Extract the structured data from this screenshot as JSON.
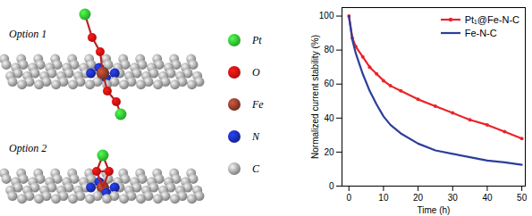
{
  "chart_data": {
    "type": "line",
    "xlabel": "Time (h)",
    "ylabel": "Normalized current stability (%)",
    "x": [
      0,
      1,
      2,
      4,
      6,
      8,
      10,
      12,
      15,
      20,
      25,
      30,
      35,
      40,
      45,
      50
    ],
    "xlim": [
      -2,
      51
    ],
    "xticks": [
      0,
      10,
      20,
      30,
      40,
      50
    ],
    "ylim": [
      0,
      105
    ],
    "yticks": [
      0,
      20,
      40,
      60,
      80,
      100
    ],
    "legend": "upper right",
    "series": [
      {
        "name": "Pt₁@Fe-N-C",
        "color": "#e8252a",
        "marker": "circle",
        "values": [
          100,
          87,
          82,
          76,
          70,
          66,
          62,
          59,
          56,
          51,
          47,
          43,
          39,
          36,
          32,
          28
        ]
      },
      {
        "name": "Fe-N-C",
        "color": "#2b3e9c",
        "values": [
          100,
          86,
          78,
          66,
          56,
          48,
          41,
          36,
          31,
          25,
          21,
          19,
          17,
          15,
          14,
          12.5
        ]
      }
    ]
  },
  "diagram": {
    "options": [
      {
        "label": "Option 1"
      },
      {
        "label": "Option 2"
      }
    ],
    "atoms": [
      {
        "label": "Pt",
        "color": "#33cc33"
      },
      {
        "label": "O",
        "color": "#dd1111"
      },
      {
        "label": "Fe",
        "color": "#8b3a2a"
      },
      {
        "label": "N",
        "color": "#1a2bb0"
      },
      {
        "label": "C",
        "color": "#a0a0a0"
      }
    ]
  }
}
